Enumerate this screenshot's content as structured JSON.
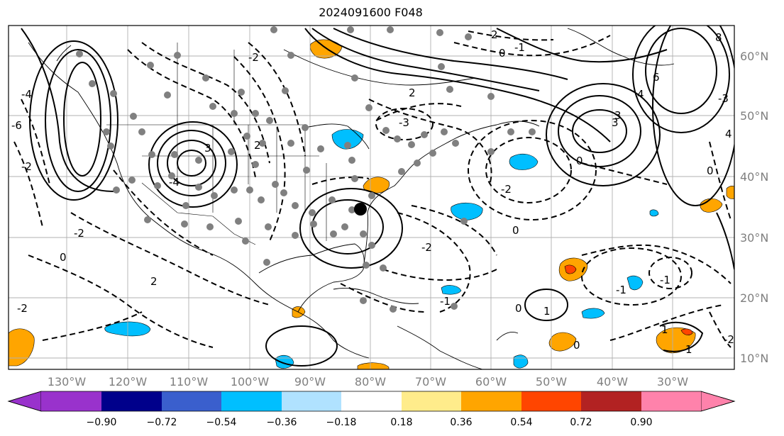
{
  "title": "2024091600 F048",
  "lat_labels": [
    "60°N",
    "50°N",
    "40°N",
    "30°N",
    "20°N",
    "10°N"
  ],
  "lon_labels": [
    "130°W",
    "120°W",
    "110°W",
    "100°W",
    "90°W",
    "80°W",
    "70°W",
    "60°W",
    "50°W",
    "40°W",
    "30°W"
  ],
  "colorbar": {
    "colors": [
      "#9932cc",
      "#00008b",
      "#3a5fcd",
      "#00bfff",
      "#b0e2ff",
      "#ffffff",
      "#ffec8b",
      "#ffa500",
      "#ff4500",
      "#b22222",
      "#ff82ab"
    ],
    "tick_labels": [
      "−0.90",
      "−0.72",
      "−0.54",
      "−0.36",
      "−0.18",
      "0.18",
      "0.36",
      "0.54",
      "0.72",
      "0.90"
    ]
  },
  "contour_labels": [
    "2",
    "0",
    "-1",
    "8",
    "6",
    "4",
    "3",
    "-2",
    "2",
    "-3",
    "2",
    "-4",
    "3",
    "2",
    "-2",
    "0",
    "-2",
    "1",
    "0",
    "-1",
    "-2",
    "0",
    "3",
    "4",
    "-6",
    "-4",
    "-2",
    "-2",
    "-1",
    "0",
    "-1",
    "1",
    "1",
    "0",
    "-3",
    "-2",
    "0"
  ]
}
